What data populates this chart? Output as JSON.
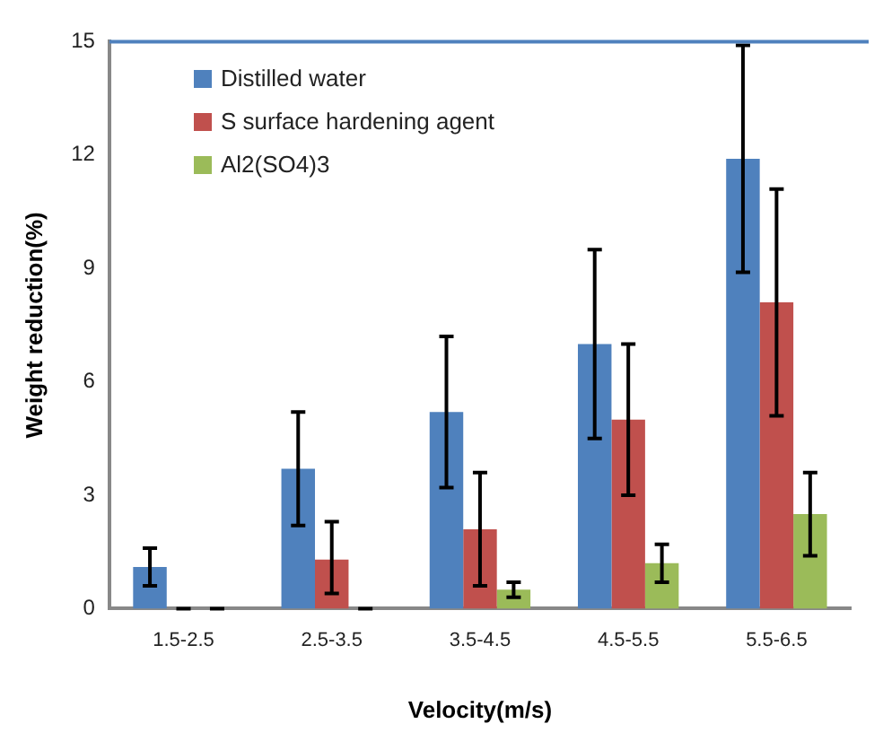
{
  "chart_data": {
    "type": "bar",
    "xlabel": "Velocity(m/s)",
    "ylabel": "Weight reduction(%)",
    "categories": [
      "1.5-2.5",
      "2.5-3.5",
      "3.5-4.5",
      "4.5-5.5",
      "5.5-6.5"
    ],
    "series": [
      {
        "name": "Distilled water",
        "color": "#4f81bd",
        "values": [
          1.1,
          3.7,
          5.2,
          7.0,
          11.9
        ],
        "errors": [
          [
            0.6,
            1.6
          ],
          [
            2.2,
            5.2
          ],
          [
            3.2,
            7.2
          ],
          [
            4.5,
            9.5
          ],
          [
            8.9,
            14.9
          ]
        ]
      },
      {
        "name": "S surface hardening agent",
        "color": "#c0504d",
        "values": [
          0,
          1.3,
          2.1,
          5.0,
          8.1
        ],
        "errors": [
          0,
          [
            0.4,
            2.3
          ],
          [
            0.6,
            3.6
          ],
          [
            3.0,
            7.0
          ],
          [
            5.1,
            11.1
          ]
        ]
      },
      {
        "name": "Al2(SO4)3",
        "color": "#9bbb59",
        "values": [
          0,
          0,
          0.5,
          1.2,
          2.5
        ],
        "errors": [
          0,
          0,
          [
            0.3,
            0.7
          ],
          [
            0.7,
            1.7
          ],
          [
            1.4,
            3.6
          ]
        ]
      }
    ],
    "ylim": [
      0,
      15
    ],
    "yticks": [
      0,
      3,
      6,
      9,
      12,
      15
    ],
    "grid": false,
    "legend": "top left"
  }
}
